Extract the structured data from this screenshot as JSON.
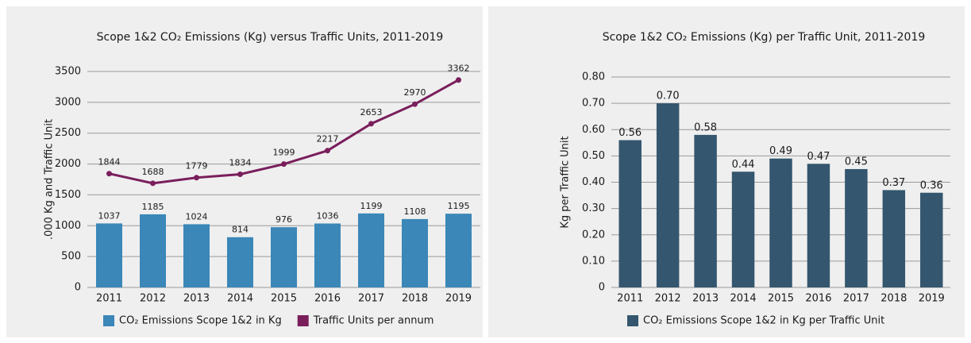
{
  "chart_data": [
    {
      "type": "combo",
      "title": "Scope 1&2 CO₂ Emissions (Kg) versus Traffic Units, 2011-2019",
      "ylabel": ".000 Kg and Traffic Unit",
      "categories": [
        "2011",
        "2012",
        "2013",
        "2014",
        "2015",
        "2016",
        "2017",
        "2018",
        "2019"
      ],
      "series": [
        {
          "name": "CO₂ Emissions Scope 1&2 in Kg",
          "kind": "bar",
          "color": "#3a87b8",
          "values": [
            1037,
            1185,
            1024,
            814,
            976,
            1036,
            1199,
            1108,
            1195
          ]
        },
        {
          "name": "Traffic Units per annum",
          "kind": "line",
          "color": "#7a1f5c",
          "values": [
            1844,
            1688,
            1779,
            1834,
            1999,
            2217,
            2653,
            2970,
            3362
          ]
        }
      ],
      "ylim": [
        0,
        3500
      ],
      "yticks": [
        0,
        500,
        1000,
        1500,
        2000,
        2500,
        3000,
        3500
      ],
      "grid": true
    },
    {
      "type": "bar",
      "title": "Scope 1&2 CO₂ Emissions (Kg) per Traffic Unit, 2011-2019",
      "ylabel": "Kg per Traffic Unit",
      "categories": [
        "2011",
        "2012",
        "2013",
        "2014",
        "2015",
        "2016",
        "2017",
        "2018",
        "2019"
      ],
      "series": [
        {
          "name": "CO₂ Emissions Scope 1&2 in Kg per Traffic Unit",
          "kind": "bar",
          "color": "#34566e",
          "values": [
            0.56,
            0.7,
            0.58,
            0.44,
            0.49,
            0.47,
            0.45,
            0.37,
            0.36
          ],
          "value_labels": [
            "0.56",
            "0.70",
            "0.58",
            "0.44",
            "0.49",
            "0.47",
            "0.45",
            "0.37",
            "0.36"
          ]
        }
      ],
      "ylim": [
        0,
        0.8
      ],
      "yticks": [
        {
          "value": 0,
          "label": "0"
        },
        {
          "value": 0.1,
          "label": "0.10"
        },
        {
          "value": 0.2,
          "label": "0.20"
        },
        {
          "value": 0.3,
          "label": "0.30"
        },
        {
          "value": 0.4,
          "label": "0.40"
        },
        {
          "value": 0.5,
          "label": "0.50"
        },
        {
          "value": 0.6,
          "label": "0.60"
        },
        {
          "value": 0.7,
          "label": "0.70"
        },
        {
          "value": 0.8,
          "label": "0.80"
        }
      ],
      "grid": true
    }
  ]
}
